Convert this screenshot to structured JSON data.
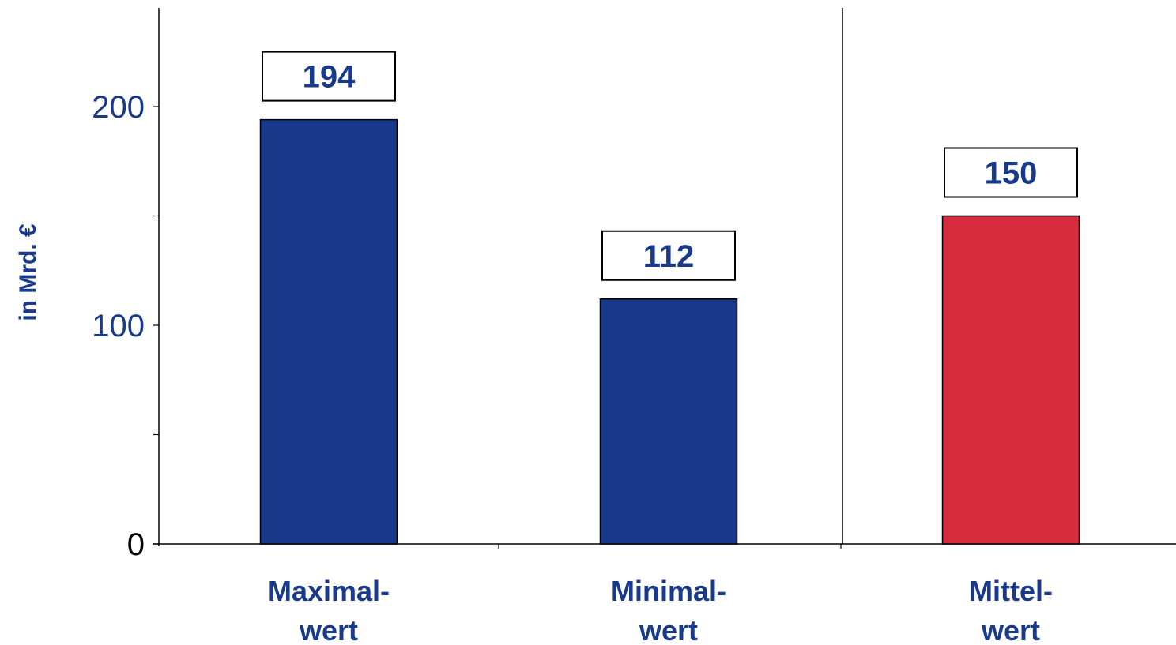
{
  "chart_data": {
    "type": "bar",
    "categories": [
      [
        "Maximal-",
        "wert"
      ],
      [
        "Minimal-",
        "wert"
      ],
      [
        "Mittel-",
        "wert"
      ]
    ],
    "values": [
      194,
      112,
      150
    ],
    "value_labels": [
      "194",
      "112",
      "150"
    ],
    "bar_colors": [
      "#193a8a",
      "#193a8a",
      "#d62b3d"
    ],
    "ylabel": "in Mrd. €",
    "ylim": [
      0,
      240
    ],
    "yticks": [
      0,
      100,
      200
    ],
    "ytick_labels": [
      "0",
      "100",
      "200"
    ],
    "ytick_colors": [
      "#000000",
      "#193a8a",
      "#193a8a"
    ],
    "label_color": "#193a8a",
    "grid": false,
    "separator_after_category": 1
  }
}
